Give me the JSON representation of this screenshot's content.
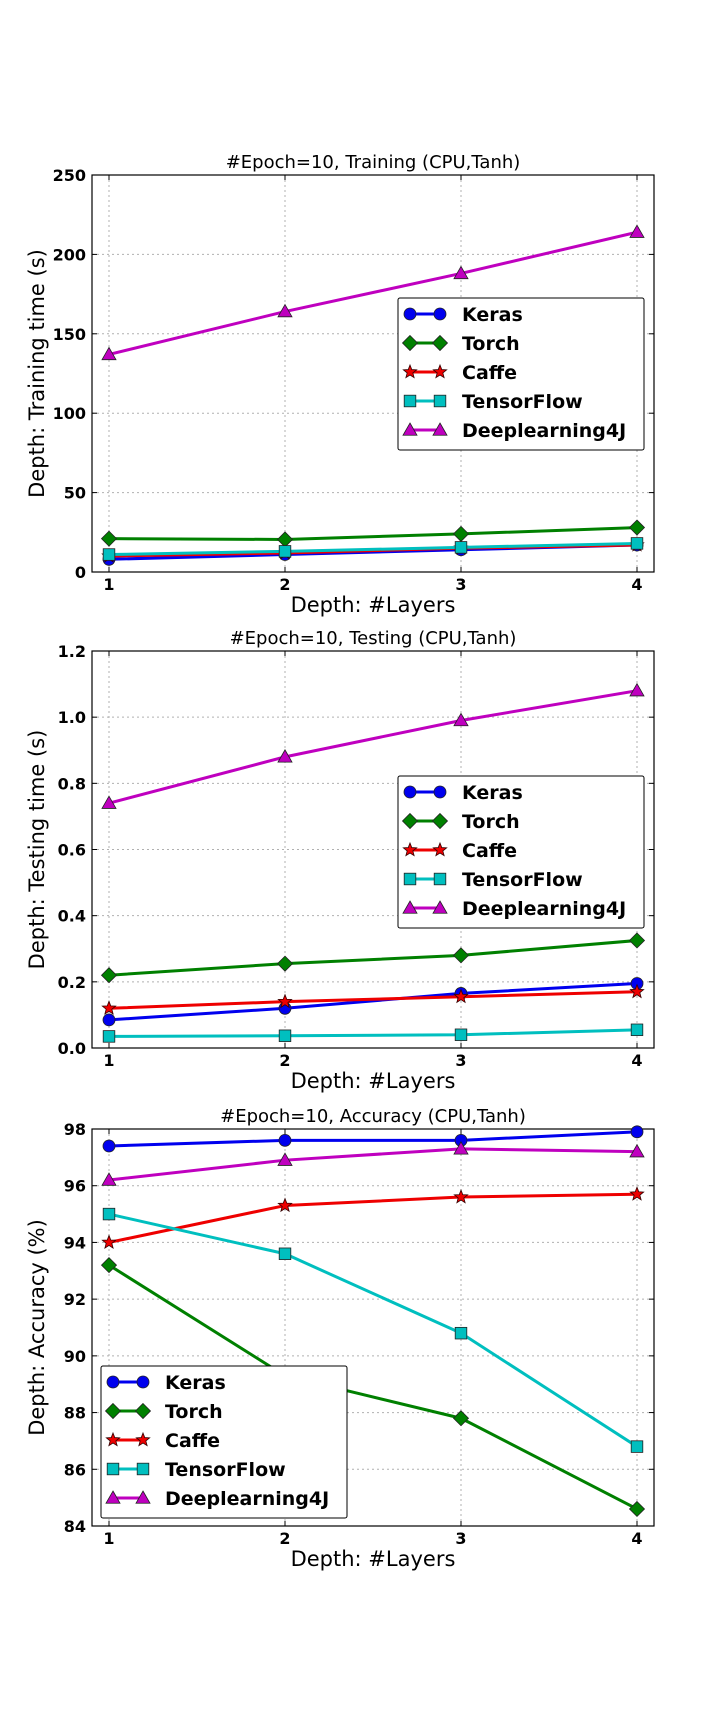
{
  "chart_data": [
    {
      "type": "line",
      "title": "#Epoch=10, Training (CPU,Tanh)",
      "xlabel": "Depth: #Layers",
      "ylabel": "Depth: Training time (s)",
      "x": [
        1,
        2,
        3,
        4
      ],
      "xticks": [
        "1",
        "2",
        "3",
        "4"
      ],
      "ylim": [
        0,
        250
      ],
      "yticks": [
        0,
        50,
        100,
        150,
        200,
        250
      ],
      "ytick_labels": [
        "0",
        "50",
        "100",
        "150",
        "200",
        "250"
      ],
      "grid": true,
      "legend_position": "center-right",
      "series": [
        {
          "name": "Keras",
          "values": [
            8,
            11,
            14,
            17
          ]
        },
        {
          "name": "Torch",
          "values": [
            21,
            20.5,
            24,
            28
          ]
        },
        {
          "name": "Caffe",
          "values": [
            10,
            12,
            15,
            17
          ]
        },
        {
          "name": "TensorFlow",
          "values": [
            11,
            13,
            15.5,
            18
          ]
        },
        {
          "name": "Deeplearning4J",
          "values": [
            137,
            164,
            188,
            214
          ]
        }
      ]
    },
    {
      "type": "line",
      "title": "#Epoch=10, Testing (CPU,Tanh)",
      "xlabel": "Depth: #Layers",
      "ylabel": "Depth: Testing time (s)",
      "x": [
        1,
        2,
        3,
        4
      ],
      "xticks": [
        "1",
        "2",
        "3",
        "4"
      ],
      "ylim": [
        0,
        1.2
      ],
      "yticks": [
        0,
        0.2,
        0.4,
        0.6,
        0.8,
        1.0,
        1.2
      ],
      "ytick_labels": [
        "0.0",
        "0.2",
        "0.4",
        "0.6",
        "0.8",
        "1.0",
        "1.2"
      ],
      "grid": true,
      "legend_position": "center-right",
      "series": [
        {
          "name": "Keras",
          "values": [
            0.085,
            0.12,
            0.165,
            0.195
          ]
        },
        {
          "name": "Torch",
          "values": [
            0.22,
            0.255,
            0.28,
            0.325
          ]
        },
        {
          "name": "Caffe",
          "values": [
            0.12,
            0.14,
            0.155,
            0.17
          ]
        },
        {
          "name": "TensorFlow",
          "values": [
            0.035,
            0.037,
            0.04,
            0.055
          ]
        },
        {
          "name": "Deeplearning4J",
          "values": [
            0.74,
            0.88,
            0.99,
            1.08
          ]
        }
      ]
    },
    {
      "type": "line",
      "title": "#Epoch=10, Accuracy (CPU,Tanh)",
      "xlabel": "Depth: #Layers",
      "ylabel": "Depth: Accuracy (%)",
      "x": [
        1,
        2,
        3,
        4
      ],
      "xticks": [
        "1",
        "2",
        "3",
        "4"
      ],
      "ylim": [
        84,
        98
      ],
      "yticks": [
        84,
        86,
        88,
        90,
        92,
        94,
        96,
        98
      ],
      "ytick_labels": [
        "84",
        "86",
        "88",
        "90",
        "92",
        "94",
        "96",
        "98"
      ],
      "grid": true,
      "legend_position": "lower-left",
      "series": [
        {
          "name": "Keras",
          "values": [
            97.4,
            97.6,
            97.6,
            97.9
          ]
        },
        {
          "name": "Torch",
          "values": [
            93.2,
            89.3,
            87.8,
            84.6
          ]
        },
        {
          "name": "Caffe",
          "values": [
            94.0,
            95.3,
            95.6,
            95.7
          ]
        },
        {
          "name": "TensorFlow",
          "values": [
            95.0,
            93.6,
            90.8,
            86.8
          ]
        },
        {
          "name": "Deeplearning4J",
          "values": [
            96.2,
            96.9,
            97.3,
            97.2
          ]
        }
      ]
    }
  ],
  "series_styles": {
    "Keras": {
      "color": "#0000ee",
      "marker": "circle"
    },
    "Torch": {
      "color": "#008000",
      "marker": "diamond"
    },
    "Caffe": {
      "color": "#ee0000",
      "marker": "star"
    },
    "TensorFlow": {
      "color": "#00bfbf",
      "marker": "square"
    },
    "Deeplearning4J": {
      "color": "#bf00bf",
      "marker": "triangle"
    }
  }
}
